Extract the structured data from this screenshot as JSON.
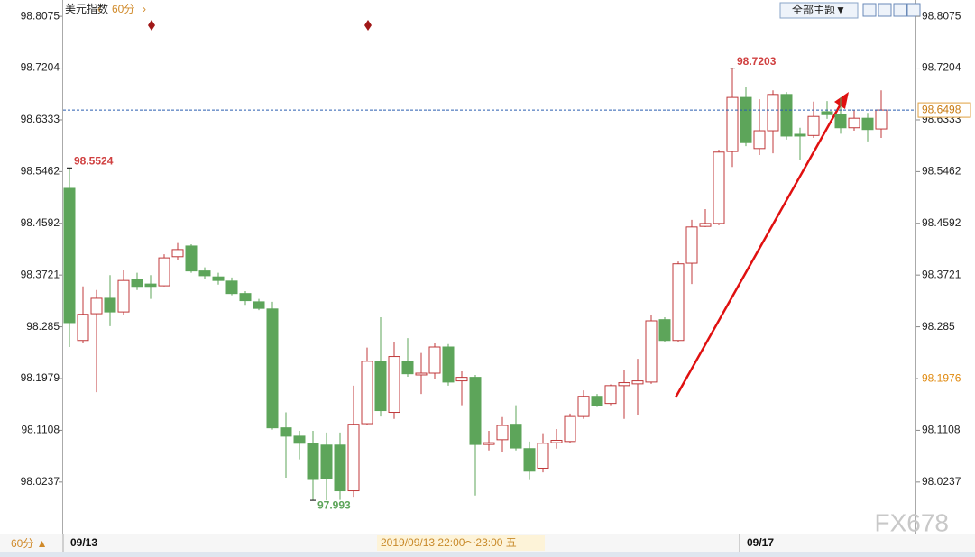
{
  "chart_data": {
    "type": "candlestick",
    "title": "美元指数",
    "period": "60分",
    "period_button": "60分 ▲",
    "theme_button": "全部主题▼",
    "cursor_label": "2019/09/13 22:00～23:00 五",
    "watermark": "FX678",
    "up_color": "#c0393b",
    "down_color": "#5da55a",
    "ref_price": 98.1976,
    "ylim": [
      97.937,
      98.835
    ],
    "yticks": [
      98.8075,
      98.7204,
      98.6333,
      98.5462,
      98.4592,
      98.3721,
      98.285,
      98.1979,
      98.1108,
      98.0237
    ],
    "categories": [
      "09/13",
      null,
      null,
      null,
      null,
      null,
      null,
      null,
      null,
      null,
      null,
      null,
      null,
      null,
      null,
      null,
      null,
      null,
      null,
      null,
      null,
      null,
      null,
      null,
      null,
      null,
      null,
      null,
      null,
      null,
      null,
      null,
      null,
      null,
      null,
      null,
      null,
      null,
      null,
      null,
      null,
      null,
      null,
      null,
      null,
      null,
      null,
      null,
      null,
      null,
      "09/17",
      null,
      null,
      null,
      null,
      null,
      null,
      null,
      null,
      null,
      null
    ],
    "open": [
      98.518,
      98.262,
      98.307,
      98.333,
      98.31,
      98.365,
      98.357,
      98.354,
      98.403,
      98.421,
      98.379,
      98.369,
      98.362,
      98.341,
      98.327,
      98.315,
      98.115,
      98.101,
      98.089,
      98.086,
      98.086,
      98.009,
      98.122,
      98.227,
      98.141,
      98.227,
      98.204,
      98.207,
      98.251,
      98.194,
      98.2,
      98.087,
      98.095,
      98.121,
      98.08,
      98.047,
      98.09,
      98.092,
      98.134,
      98.168,
      98.156,
      98.186,
      98.189,
      98.192,
      98.297,
      98.262,
      98.392,
      98.454,
      98.459,
      98.58,
      98.671,
      98.585,
      98.615,
      98.676,
      98.609,
      98.607,
      98.647,
      98.642,
      98.62,
      98.636,
      98.618
    ],
    "high": [
      98.5524,
      98.353,
      98.347,
      98.372,
      98.38,
      98.376,
      98.372,
      98.407,
      98.426,
      98.424,
      98.385,
      98.376,
      98.368,
      98.345,
      98.332,
      98.327,
      98.141,
      98.11,
      98.11,
      98.107,
      98.107,
      98.186,
      98.25,
      98.301,
      98.259,
      98.266,
      98.241,
      98.257,
      98.256,
      98.21,
      98.204,
      98.11,
      98.133,
      98.153,
      98.092,
      98.106,
      98.113,
      98.139,
      98.178,
      98.172,
      98.188,
      98.213,
      98.231,
      98.304,
      98.301,
      98.395,
      98.465,
      98.483,
      98.583,
      98.7203,
      98.689,
      98.668,
      98.683,
      98.68,
      98.62,
      98.664,
      98.665,
      98.671,
      98.65,
      98.645,
      98.683
    ],
    "low": [
      98.251,
      98.257,
      98.175,
      98.286,
      98.304,
      98.347,
      98.332,
      98.353,
      98.398,
      98.376,
      98.365,
      98.356,
      98.338,
      98.322,
      98.313,
      98.112,
      98.031,
      98.062,
      97.993,
      97.993,
      97.9936,
      97.999,
      98.119,
      98.134,
      98.13,
      98.201,
      98.172,
      98.198,
      98.186,
      98.153,
      98.001,
      98.077,
      98.075,
      98.077,
      98.027,
      98.04,
      98.08,
      98.09,
      98.13,
      98.15,
      98.153,
      98.13,
      98.136,
      98.189,
      98.259,
      98.259,
      98.357,
      98.453,
      98.456,
      98.554,
      98.589,
      98.574,
      98.577,
      98.6,
      98.565,
      98.603,
      98.635,
      98.61,
      98.615,
      98.597,
      98.603
    ],
    "close": [
      98.292,
      98.306,
      98.333,
      98.31,
      98.363,
      98.353,
      98.353,
      98.401,
      98.415,
      98.379,
      98.371,
      98.363,
      98.341,
      98.329,
      98.316,
      98.115,
      98.101,
      98.089,
      98.028,
      98.03,
      98.009,
      98.121,
      98.227,
      98.144,
      98.235,
      98.206,
      98.207,
      98.251,
      98.192,
      98.2,
      98.087,
      98.09,
      98.119,
      98.081,
      98.042,
      98.089,
      98.094,
      98.134,
      98.168,
      98.153,
      98.186,
      98.191,
      98.194,
      98.295,
      98.262,
      98.391,
      98.453,
      98.459,
      98.579,
      98.671,
      98.595,
      98.615,
      98.676,
      98.606,
      98.606,
      98.639,
      98.642,
      98.62,
      98.636,
      98.617,
      98.6498
    ]
  }
}
